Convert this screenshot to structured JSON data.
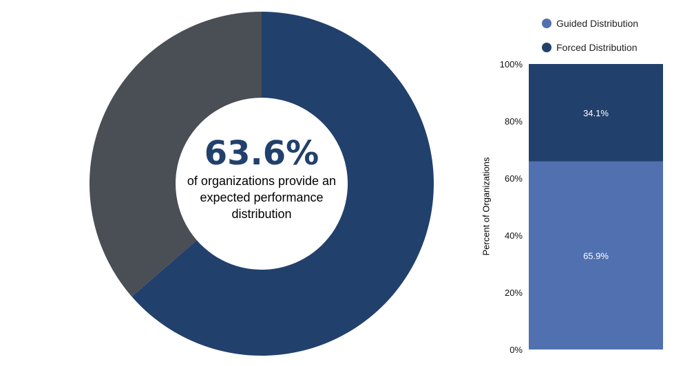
{
  "chart_data": [
    {
      "type": "pie",
      "donut": true,
      "slices": [
        {
          "label": "",
          "value": 63.6,
          "color": "#22406c"
        },
        {
          "label": "",
          "value": 36.4,
          "color": "#4a4e55"
        }
      ],
      "center_value": "63.6%",
      "center_text": "of organizations provide an expected performance distribution"
    },
    {
      "type": "bar",
      "stacked": true,
      "categories": [
        ""
      ],
      "series": [
        {
          "name": "Guided Distribution",
          "values": [
            65.9
          ],
          "label": "65.9%",
          "color": "#5170b0"
        },
        {
          "name": "Forced Distribution",
          "values": [
            34.1
          ],
          "label": "34.1%",
          "color": "#22406c"
        }
      ],
      "ylabel": "Percent of Organizations",
      "ylim": [
        0,
        100
      ],
      "yticks": [
        "0%",
        "20%",
        "40%",
        "60%",
        "80%",
        "100%"
      ],
      "legend": "top",
      "grid": false
    }
  ]
}
